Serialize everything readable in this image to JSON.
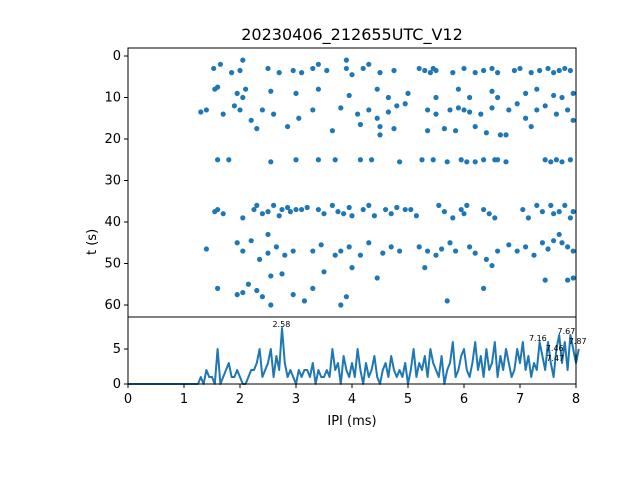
{
  "chart_data": [
    {
      "type": "scatter",
      "title": "20230406_212655UTC_V12",
      "xlabel": "",
      "ylabel": "t (s)",
      "xlim": [
        0,
        8
      ],
      "ylim": [
        62,
        -2
      ],
      "yticks": [
        "0",
        "10",
        "20",
        "30",
        "40",
        "50",
        "60"
      ],
      "color": "#1f77b4",
      "points": [
        [
          1.53,
          3
        ],
        [
          1.65,
          2
        ],
        [
          1.85,
          4
        ],
        [
          2.0,
          3.5
        ],
        [
          2.05,
          1
        ],
        [
          2.5,
          3
        ],
        [
          2.7,
          4
        ],
        [
          2.95,
          3.5
        ],
        [
          3.1,
          4
        ],
        [
          3.3,
          3
        ],
        [
          3.55,
          3.5
        ],
        [
          3.9,
          3
        ],
        [
          4.0,
          4.5
        ],
        [
          4.2,
          3
        ],
        [
          4.5,
          4
        ],
        [
          4.75,
          3.5
        ],
        [
          5.2,
          3
        ],
        [
          5.3,
          3.5
        ],
        [
          5.4,
          4
        ],
        [
          5.45,
          3
        ],
        [
          5.5,
          3.5
        ],
        [
          5.8,
          4
        ],
        [
          6.0,
          3
        ],
        [
          6.2,
          4
        ],
        [
          6.35,
          3.5
        ],
        [
          6.5,
          3
        ],
        [
          6.6,
          4
        ],
        [
          6.9,
          3.5
        ],
        [
          7.0,
          3
        ],
        [
          7.2,
          4
        ],
        [
          7.35,
          3.5
        ],
        [
          7.5,
          3
        ],
        [
          7.6,
          4
        ],
        [
          7.7,
          3.5
        ],
        [
          7.8,
          3
        ],
        [
          7.9,
          3.5
        ],
        [
          3.9,
          1
        ],
        [
          3.4,
          2
        ],
        [
          4.3,
          2
        ],
        [
          1.55,
          8
        ],
        [
          1.6,
          7.5
        ],
        [
          1.95,
          9
        ],
        [
          2.1,
          8
        ],
        [
          2.55,
          8.5
        ],
        [
          3.0,
          9
        ],
        [
          3.4,
          8
        ],
        [
          3.95,
          9.5
        ],
        [
          4.45,
          8
        ],
        [
          5.0,
          9
        ],
        [
          5.5,
          10
        ],
        [
          5.9,
          8
        ],
        [
          6.1,
          10
        ],
        [
          6.5,
          8.5
        ],
        [
          6.6,
          10
        ],
        [
          7.1,
          9
        ],
        [
          7.3,
          8
        ],
        [
          7.6,
          9.5
        ],
        [
          7.75,
          10
        ],
        [
          7.95,
          9
        ],
        [
          2.05,
          10
        ],
        [
          4.65,
          10
        ],
        [
          1.3,
          13.5
        ],
        [
          1.4,
          13
        ],
        [
          1.7,
          14
        ],
        [
          1.9,
          12
        ],
        [
          2.0,
          13
        ],
        [
          2.2,
          15.5
        ],
        [
          2.4,
          13
        ],
        [
          2.6,
          14
        ],
        [
          3.05,
          15
        ],
        [
          3.3,
          13
        ],
        [
          3.8,
          12.5
        ],
        [
          4.1,
          14
        ],
        [
          4.3,
          13
        ],
        [
          4.45,
          15
        ],
        [
          4.65,
          13.5
        ],
        [
          4.8,
          12
        ],
        [
          4.95,
          11.5
        ],
        [
          5.35,
          13
        ],
        [
          5.5,
          14
        ],
        [
          5.75,
          13
        ],
        [
          5.9,
          12.5
        ],
        [
          6.0,
          13
        ],
        [
          6.1,
          13.5
        ],
        [
          6.3,
          14
        ],
        [
          6.5,
          12.5
        ],
        [
          6.8,
          13
        ],
        [
          6.95,
          11.5
        ],
        [
          7.1,
          15
        ],
        [
          7.3,
          13
        ],
        [
          7.45,
          12
        ],
        [
          7.65,
          14
        ],
        [
          7.85,
          13
        ],
        [
          7.95,
          15.5
        ],
        [
          2.3,
          17.5
        ],
        [
          2.85,
          17
        ],
        [
          3.65,
          18
        ],
        [
          4.15,
          16.5
        ],
        [
          4.5,
          17
        ],
        [
          4.75,
          17.5
        ],
        [
          5.35,
          18
        ],
        [
          5.65,
          17.5
        ],
        [
          5.85,
          18
        ],
        [
          6.2,
          17
        ],
        [
          6.4,
          18.5
        ],
        [
          6.75,
          19
        ],
        [
          7.2,
          17
        ],
        [
          6.65,
          19
        ],
        [
          4.5,
          19
        ],
        [
          1.6,
          25
        ],
        [
          1.8,
          25
        ],
        [
          2.55,
          25.5
        ],
        [
          3.0,
          25
        ],
        [
          3.4,
          25
        ],
        [
          3.7,
          25
        ],
        [
          4.15,
          25
        ],
        [
          4.35,
          25
        ],
        [
          4.85,
          25.5
        ],
        [
          5.25,
          25
        ],
        [
          5.45,
          25
        ],
        [
          5.7,
          25.5
        ],
        [
          5.95,
          25
        ],
        [
          6.05,
          25.5
        ],
        [
          6.2,
          25.5
        ],
        [
          6.35,
          25
        ],
        [
          6.55,
          25
        ],
        [
          6.6,
          25
        ],
        [
          6.75,
          25.5
        ],
        [
          7.45,
          25
        ],
        [
          7.55,
          25.5
        ],
        [
          7.65,
          25
        ],
        [
          7.75,
          25.5
        ],
        [
          7.9,
          25
        ],
        [
          1.55,
          37.5
        ],
        [
          1.6,
          37
        ],
        [
          1.7,
          38
        ],
        [
          2.05,
          39
        ],
        [
          2.25,
          37
        ],
        [
          2.3,
          36
        ],
        [
          2.4,
          38
        ],
        [
          2.5,
          37.5
        ],
        [
          2.6,
          36
        ],
        [
          2.7,
          38.5
        ],
        [
          2.75,
          37
        ],
        [
          2.85,
          36.5
        ],
        [
          2.9,
          37.5
        ],
        [
          3.0,
          37
        ],
        [
          3.1,
          37
        ],
        [
          3.2,
          36.5
        ],
        [
          3.4,
          37
        ],
        [
          3.5,
          38
        ],
        [
          3.65,
          36
        ],
        [
          3.75,
          37.5
        ],
        [
          3.85,
          38
        ],
        [
          3.95,
          36.5
        ],
        [
          4.0,
          38.5
        ],
        [
          4.2,
          37
        ],
        [
          4.3,
          36
        ],
        [
          4.4,
          38.5
        ],
        [
          4.6,
          37
        ],
        [
          4.7,
          38
        ],
        [
          4.8,
          36.5
        ],
        [
          4.95,
          37
        ],
        [
          5.05,
          37
        ],
        [
          5.15,
          38.5
        ],
        [
          5.55,
          36
        ],
        [
          5.65,
          37.5
        ],
        [
          5.8,
          39
        ],
        [
          5.95,
          37
        ],
        [
          6.0,
          38
        ],
        [
          6.05,
          36
        ],
        [
          6.35,
          37
        ],
        [
          6.45,
          38
        ],
        [
          6.55,
          39
        ],
        [
          7.05,
          37
        ],
        [
          7.15,
          39
        ],
        [
          7.3,
          36
        ],
        [
          7.4,
          37.5
        ],
        [
          7.55,
          36
        ],
        [
          7.6,
          38
        ],
        [
          7.7,
          37.5
        ],
        [
          7.8,
          36
        ],
        [
          7.9,
          39
        ],
        [
          7.95,
          37.5
        ],
        [
          1.4,
          46.5
        ],
        [
          1.95,
          45
        ],
        [
          2.05,
          47
        ],
        [
          2.2,
          44.5
        ],
        [
          2.35,
          49
        ],
        [
          2.5,
          47.5
        ],
        [
          2.65,
          46
        ],
        [
          2.8,
          48
        ],
        [
          2.95,
          47
        ],
        [
          3.3,
          47
        ],
        [
          3.45,
          45.5
        ],
        [
          3.7,
          48
        ],
        [
          3.8,
          47
        ],
        [
          3.95,
          46
        ],
        [
          4.15,
          48
        ],
        [
          4.3,
          45
        ],
        [
          4.55,
          47.5
        ],
        [
          4.7,
          46
        ],
        [
          4.85,
          47
        ],
        [
          5.2,
          46
        ],
        [
          5.35,
          47
        ],
        [
          5.5,
          48
        ],
        [
          5.6,
          46.5
        ],
        [
          5.75,
          45
        ],
        [
          5.85,
          47
        ],
        [
          6.1,
          46
        ],
        [
          6.2,
          47.5
        ],
        [
          6.4,
          49
        ],
        [
          6.6,
          47
        ],
        [
          6.8,
          45.5
        ],
        [
          6.95,
          47
        ],
        [
          7.1,
          46
        ],
        [
          7.25,
          48
        ],
        [
          7.4,
          45
        ],
        [
          7.5,
          46.5
        ],
        [
          7.6,
          44.5
        ],
        [
          7.75,
          45
        ],
        [
          7.85,
          46
        ],
        [
          7.95,
          47
        ],
        [
          7.7,
          43
        ],
        [
          2.5,
          43
        ],
        [
          1.6,
          56
        ],
        [
          1.95,
          57.5
        ],
        [
          2.05,
          57
        ],
        [
          2.15,
          55
        ],
        [
          2.3,
          56.5
        ],
        [
          2.4,
          58
        ],
        [
          2.55,
          53
        ],
        [
          2.75,
          52.5
        ],
        [
          2.95,
          57.5
        ],
        [
          3.15,
          59
        ],
        [
          3.3,
          56
        ],
        [
          3.5,
          52
        ],
        [
          3.9,
          58
        ],
        [
          4.0,
          51
        ],
        [
          4.45,
          53.5
        ],
        [
          5.3,
          51
        ],
        [
          6.35,
          56
        ],
        [
          6.5,
          50.5
        ],
        [
          7.45,
          54
        ],
        [
          7.85,
          54
        ],
        [
          7.95,
          53.5
        ],
        [
          2.55,
          60
        ],
        [
          3.8,
          60
        ],
        [
          5.7,
          59
        ]
      ]
    },
    {
      "type": "line",
      "xlabel": "IPI (ms)",
      "ylabel": "",
      "xlim": [
        0,
        8
      ],
      "ylim": [
        0,
        9.5
      ],
      "xticks": [
        "0",
        "1",
        "2",
        "3",
        "4",
        "5",
        "6",
        "7",
        "8"
      ],
      "yticks": [
        "0",
        "5"
      ],
      "color": "#1f77b4",
      "bin_width": 0.05,
      "values": [
        0,
        0,
        0,
        0,
        0,
        0,
        0,
        0,
        0,
        0,
        0,
        0,
        0,
        0,
        0,
        0,
        0,
        0,
        0,
        0,
        0,
        0,
        0,
        0,
        0,
        0,
        1,
        0,
        2,
        1,
        1,
        0,
        5,
        0,
        1,
        2,
        3,
        1,
        1,
        2,
        1,
        0,
        0,
        1,
        2,
        2,
        3,
        5,
        1,
        2,
        3,
        5,
        1,
        4,
        2,
        8,
        3,
        1,
        2,
        1,
        0,
        2,
        1,
        2,
        2,
        1,
        3,
        0,
        2,
        1,
        1,
        2,
        1,
        5,
        2,
        3,
        0,
        4,
        2,
        1,
        3,
        1,
        5,
        2,
        0,
        3,
        1,
        2,
        4,
        1,
        0,
        2,
        3,
        1,
        4,
        2,
        1,
        2,
        1,
        3,
        0,
        2,
        5,
        1,
        3,
        2,
        4,
        1,
        5,
        3,
        2,
        1,
        4,
        0,
        2,
        3,
        6,
        1,
        2,
        4,
        5,
        2,
        1,
        3,
        6,
        2,
        4,
        1,
        5,
        2,
        3,
        6,
        1,
        4,
        2,
        5,
        3,
        1,
        2,
        5,
        3,
        6,
        2,
        4,
        1,
        3,
        2,
        6,
        4,
        2,
        6,
        3,
        1,
        5,
        7,
        3,
        6,
        2,
        7,
        5,
        3,
        5
      ],
      "annotations": [
        {
          "x": 2.58,
          "y": 8,
          "label": "2.58"
        },
        {
          "x": 7.16,
          "y": 6,
          "label": "7.16"
        },
        {
          "x": 7.46,
          "y": 6,
          "label": "7.46"
        },
        {
          "x": 7.47,
          "y": 6,
          "label": "7.47"
        },
        {
          "x": 7.67,
          "y": 7,
          "label": "7.67"
        },
        {
          "x": 7.87,
          "y": 7,
          "label": "7.87"
        }
      ]
    }
  ]
}
